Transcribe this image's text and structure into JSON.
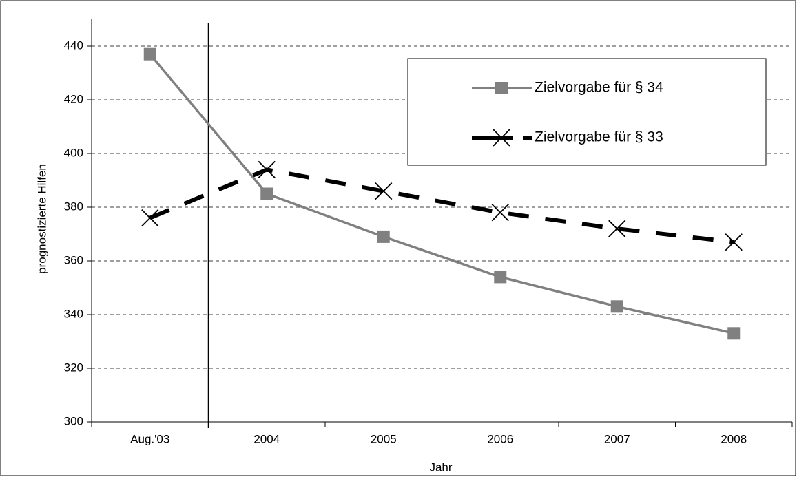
{
  "chart_data": {
    "type": "line",
    "x_label": "Jahr",
    "y_label": "prognostizierte Hilfen",
    "categories": [
      "Aug.'03",
      "2004",
      "2005",
      "2006",
      "2007",
      "2008"
    ],
    "series": [
      {
        "name": "Zielvorgabe für § 34",
        "color": "#808080",
        "marker": "square",
        "dashed": false,
        "values": [
          437,
          385,
          369,
          354,
          343,
          333
        ]
      },
      {
        "name": "Zielvorgabe für § 33",
        "color": "#000000",
        "marker": "x",
        "dashed": true,
        "values": [
          376,
          394,
          386,
          378,
          372,
          367
        ]
      }
    ],
    "ylim": [
      300,
      450
    ],
    "yticks": [
      300,
      320,
      340,
      360,
      380,
      400,
      420,
      440
    ],
    "grid": true,
    "legend": "top-right"
  }
}
